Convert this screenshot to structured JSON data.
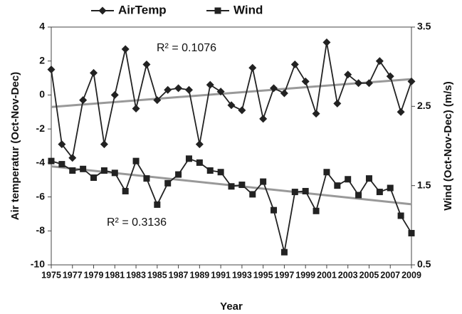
{
  "chart_data": {
    "type": "line",
    "x_label": "Year",
    "y_label": "Air temperatur (Oct-Nov-Dec)",
    "y2_label": "Wind (Oct-Nov-Dec) (m/s)",
    "x": [
      1975,
      1976,
      1977,
      1978,
      1979,
      1980,
      1981,
      1982,
      1983,
      1984,
      1985,
      1986,
      1987,
      1988,
      1989,
      1990,
      1991,
      1992,
      1993,
      1994,
      1995,
      1996,
      1997,
      1998,
      1999,
      2000,
      2001,
      2002,
      2003,
      2004,
      2005,
      2006,
      2007,
      2008,
      2009
    ],
    "xlim": [
      1975,
      2009
    ],
    "xticks": [
      1975,
      1977,
      1979,
      1981,
      1983,
      1985,
      1987,
      1989,
      1991,
      1993,
      1995,
      1997,
      1999,
      2001,
      2003,
      2005,
      2007,
      2009
    ],
    "ylim": [
      -10,
      4
    ],
    "yticks": [
      4,
      2,
      0,
      -2,
      -4,
      -6,
      -8,
      -10
    ],
    "y2lim": [
      0.5,
      3.5
    ],
    "y2ticks": [
      3.5,
      2.5,
      1.5,
      0.5
    ],
    "grid": false,
    "legend": "top",
    "trendline": true,
    "trend_color": "#999999",
    "series": [
      {
        "name": "AirTemp",
        "color": "#222222",
        "marker": "diamond",
        "values": [
          1.5,
          -2.9,
          -3.7,
          -0.3,
          1.3,
          -2.9,
          0,
          2.7,
          -0.8,
          1.8,
          -0.3,
          0.3,
          0.4,
          0.3,
          -2.9,
          0.6,
          0.2,
          -0.6,
          -0.9,
          1.6,
          -1.4,
          0.4,
          0.1,
          1.8,
          0.8,
          -1.1,
          3.1,
          -0.5,
          1.2,
          0.7,
          0.7,
          2.0,
          1.1,
          -1.0,
          0.8
        ],
        "annotation": "R² = 0.1076"
      },
      {
        "name": "Wind",
        "color": "#222222",
        "marker": "square",
        "axis": "y2",
        "values": [
          1.81,
          1.77,
          1.69,
          1.71,
          1.6,
          1.69,
          1.66,
          1.43,
          1.81,
          1.59,
          1.26,
          1.53,
          1.64,
          1.84,
          1.79,
          1.69,
          1.67,
          1.49,
          1.51,
          1.39,
          1.55,
          1.19,
          0.66,
          1.42,
          1.43,
          1.18,
          1.67,
          1.5,
          1.58,
          1.38,
          1.59,
          1.42,
          1.47,
          1.12,
          0.9
        ],
        "annotation": "R² = 0.3136"
      }
    ]
  }
}
